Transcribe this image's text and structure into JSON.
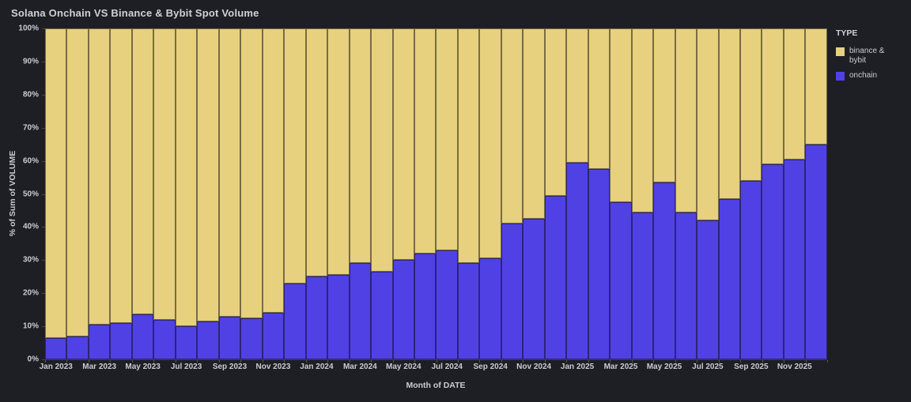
{
  "title": "Solana Onchain VS Binance & Bybit Spot Volume",
  "legend": {
    "title": "TYPE",
    "items": [
      {
        "label": "binance & bybit",
        "color": "#e7d07e"
      },
      {
        "label": "onchain",
        "color": "#5041e4"
      }
    ]
  },
  "axes": {
    "x_title": "Month of DATE",
    "y_title": "% of Sum of VOLUME",
    "y_ticks": [
      "0%",
      "10%",
      "20%",
      "30%",
      "40%",
      "50%",
      "60%",
      "70%",
      "80%",
      "90%",
      "100%"
    ]
  },
  "chart_data": {
    "type": "bar",
    "stacked": true,
    "title": "Solana Onchain VS Binance & Bybit Spot Volume",
    "xlabel": "Month of DATE",
    "ylabel": "% of Sum of VOLUME",
    "ylim": [
      0,
      100
    ],
    "grid": false,
    "legend_position": "top-right",
    "categories": [
      "Jan 2023",
      "Feb 2023",
      "Mar 2023",
      "Apr 2023",
      "May 2023",
      "Jun 2023",
      "Jul 2023",
      "Aug 2023",
      "Sep 2023",
      "Oct 2023",
      "Nov 2023",
      "Dec 2023",
      "Jan 2024",
      "Feb 2024",
      "Mar 2024",
      "Apr 2024",
      "May 2024",
      "Jun 2024",
      "Jul 2024",
      "Aug 2024",
      "Sep 2024",
      "Oct 2024",
      "Nov 2024",
      "Dec 2024",
      "Jan 2025",
      "Feb 2025",
      "Mar 2025",
      "Apr 2025",
      "May 2025",
      "Jun 2025",
      "Jul 2025",
      "Aug 2025",
      "Sep 2025",
      "Oct 2025",
      "Nov 2025",
      "Dec 2025"
    ],
    "x_tick_labels": [
      "Jan 2023",
      "Mar 2023",
      "May 2023",
      "Jul 2023",
      "Sep 2023",
      "Nov 2023",
      "Jan 2024",
      "Mar 2024",
      "May 2024",
      "Jul 2024",
      "Sep 2024",
      "Nov 2024",
      "Jan 2025",
      "Mar 2025",
      "May 2025",
      "Jul 2025",
      "Sep 2025",
      "Nov 2025"
    ],
    "x_tick_every": 2,
    "series": [
      {
        "name": "onchain",
        "color": "#5041e4",
        "values": [
          6.5,
          7,
          10.5,
          11,
          13.5,
          12,
          10,
          11.5,
          13,
          12.5,
          14,
          23,
          25,
          25.5,
          29,
          26.5,
          30,
          32,
          33,
          29,
          30.5,
          41,
          42.5,
          49.5,
          59.5,
          57.5,
          47.5,
          44.5,
          53.5,
          44.5,
          42,
          48.5,
          54,
          59,
          60.5,
          65
        ]
      },
      {
        "name": "binance & bybit",
        "color": "#e7d07e",
        "values": [
          93.5,
          93,
          89.5,
          89,
          86.5,
          88,
          90,
          88.5,
          87,
          87.5,
          86,
          77,
          75,
          74.5,
          71,
          73.5,
          70,
          68,
          67,
          71,
          69.5,
          59,
          57.5,
          50.5,
          40.5,
          42.5,
          52.5,
          55.5,
          46.5,
          55.5,
          58,
          51.5,
          46,
          41,
          39.5,
          35
        ]
      }
    ]
  }
}
